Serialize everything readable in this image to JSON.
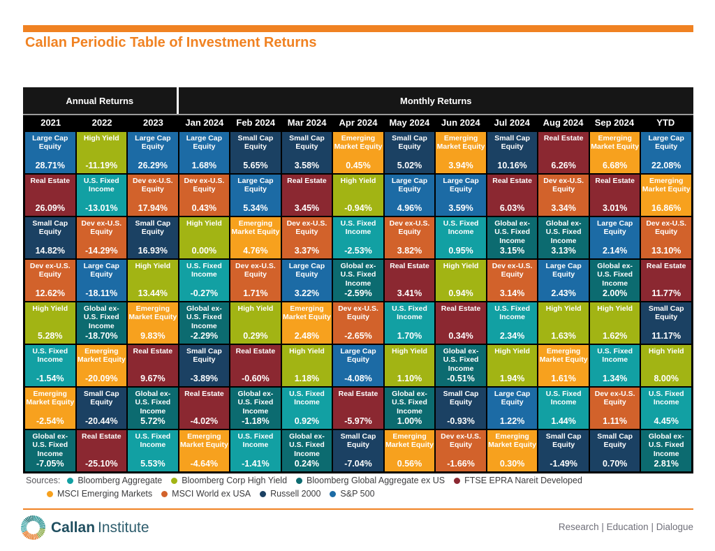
{
  "page": {
    "title": "Callan Periodic Table of Investment Returns",
    "accent_color": "#F08222"
  },
  "table": {
    "annual_header": "Annual Returns",
    "monthly_header": "Monthly Returns"
  },
  "assets": {
    "large_cap": {
      "label": "Large Cap Equity",
      "color": "#1C6BA5",
      "source": "S&P 500"
    },
    "small_cap": {
      "label": "Small Cap Equity",
      "color": "#1B4163",
      "source": "Russell 2000"
    },
    "dev_ex_us": {
      "label": "Dev ex-U.S. Equity",
      "color": "#D2622B",
      "source": "MSCI World ex USA"
    },
    "em_equity": {
      "label": "Emerging Market Equity",
      "color": "#F7A11E",
      "source": "MSCI Emerging Markets"
    },
    "high_yield": {
      "label": "High Yield",
      "color": "#A2B414",
      "source": "Bloomberg Corp High Yield"
    },
    "us_fixed": {
      "label": "U.S. Fixed Income",
      "color": "#12A0A3",
      "source": "Bloomberg Aggregate"
    },
    "global_fixed": {
      "label": "Global ex-U.S. Fixed Income",
      "color": "#0C6B70",
      "source": "Bloomberg Global Aggregate ex US"
    },
    "real_estate": {
      "label": "Real Estate",
      "color": "#8B2831",
      "source": "FTSE EPRA Nareit Developed"
    }
  },
  "chart_data": {
    "type": "table",
    "title": "Callan Periodic Table of Investment Returns",
    "value_unit": "percent_return",
    "column_groups": [
      {
        "label": "Annual Returns",
        "columns": 3
      },
      {
        "label": "Monthly Returns",
        "columns": 10
      }
    ],
    "columns": [
      {
        "label": "2021",
        "cells": [
          {
            "asset": "large_cap",
            "value": 28.71
          },
          {
            "asset": "real_estate",
            "value": 26.09
          },
          {
            "asset": "small_cap",
            "value": 14.82
          },
          {
            "asset": "dev_ex_us",
            "value": 12.62
          },
          {
            "asset": "high_yield",
            "value": 5.28
          },
          {
            "asset": "us_fixed",
            "value": -1.54
          },
          {
            "asset": "em_equity",
            "value": -2.54
          },
          {
            "asset": "global_fixed",
            "value": -7.05
          }
        ]
      },
      {
        "label": "2022",
        "cells": [
          {
            "asset": "high_yield",
            "value": -11.19
          },
          {
            "asset": "us_fixed",
            "value": -13.01
          },
          {
            "asset": "dev_ex_us",
            "value": -14.29
          },
          {
            "asset": "large_cap",
            "value": -18.11
          },
          {
            "asset": "global_fixed",
            "value": -18.7
          },
          {
            "asset": "em_equity",
            "value": -20.09
          },
          {
            "asset": "small_cap",
            "value": -20.44
          },
          {
            "asset": "real_estate",
            "value": -25.1
          }
        ]
      },
      {
        "label": "2023",
        "cells": [
          {
            "asset": "large_cap",
            "value": 26.29
          },
          {
            "asset": "dev_ex_us",
            "value": 17.94
          },
          {
            "asset": "small_cap",
            "value": 16.93
          },
          {
            "asset": "high_yield",
            "value": 13.44
          },
          {
            "asset": "em_equity",
            "value": 9.83
          },
          {
            "asset": "real_estate",
            "value": 9.67
          },
          {
            "asset": "global_fixed",
            "value": 5.72
          },
          {
            "asset": "us_fixed",
            "value": 5.53
          }
        ]
      },
      {
        "label": "Jan 2024",
        "cells": [
          {
            "asset": "large_cap",
            "value": 1.68
          },
          {
            "asset": "dev_ex_us",
            "value": 0.43
          },
          {
            "asset": "high_yield",
            "value": 0.0
          },
          {
            "asset": "us_fixed",
            "value": -0.27
          },
          {
            "asset": "global_fixed",
            "value": -2.29
          },
          {
            "asset": "small_cap",
            "value": -3.89
          },
          {
            "asset": "real_estate",
            "value": -4.02
          },
          {
            "asset": "em_equity",
            "value": -4.64
          }
        ]
      },
      {
        "label": "Feb 2024",
        "cells": [
          {
            "asset": "small_cap",
            "value": 5.65
          },
          {
            "asset": "large_cap",
            "value": 5.34
          },
          {
            "asset": "em_equity",
            "value": 4.76
          },
          {
            "asset": "dev_ex_us",
            "value": 1.71
          },
          {
            "asset": "high_yield",
            "value": 0.29
          },
          {
            "asset": "real_estate",
            "value": -0.6
          },
          {
            "asset": "global_fixed",
            "value": -1.18
          },
          {
            "asset": "us_fixed",
            "value": -1.41
          }
        ]
      },
      {
        "label": "Mar 2024",
        "cells": [
          {
            "asset": "small_cap",
            "value": 3.58
          },
          {
            "asset": "real_estate",
            "value": 3.45
          },
          {
            "asset": "dev_ex_us",
            "value": 3.37
          },
          {
            "asset": "large_cap",
            "value": 3.22
          },
          {
            "asset": "em_equity",
            "value": 2.48
          },
          {
            "asset": "high_yield",
            "value": 1.18
          },
          {
            "asset": "us_fixed",
            "value": 0.92
          },
          {
            "asset": "global_fixed",
            "value": 0.24
          }
        ]
      },
      {
        "label": "Apr 2024",
        "cells": [
          {
            "asset": "em_equity",
            "value": 0.45
          },
          {
            "asset": "high_yield",
            "value": -0.94
          },
          {
            "asset": "us_fixed",
            "value": -2.53
          },
          {
            "asset": "global_fixed",
            "value": -2.59
          },
          {
            "asset": "dev_ex_us",
            "value": -2.65
          },
          {
            "asset": "large_cap",
            "value": -4.08
          },
          {
            "asset": "real_estate",
            "value": -5.97
          },
          {
            "asset": "small_cap",
            "value": -7.04
          }
        ]
      },
      {
        "label": "May 2024",
        "cells": [
          {
            "asset": "small_cap",
            "value": 5.02
          },
          {
            "asset": "large_cap",
            "value": 4.96
          },
          {
            "asset": "dev_ex_us",
            "value": 3.82
          },
          {
            "asset": "real_estate",
            "value": 3.41
          },
          {
            "asset": "us_fixed",
            "value": 1.7
          },
          {
            "asset": "high_yield",
            "value": 1.1
          },
          {
            "asset": "global_fixed",
            "value": 1.0
          },
          {
            "asset": "em_equity",
            "value": 0.56
          }
        ]
      },
      {
        "label": "Jun 2024",
        "cells": [
          {
            "asset": "em_equity",
            "value": 3.94
          },
          {
            "asset": "large_cap",
            "value": 3.59
          },
          {
            "asset": "us_fixed",
            "value": 0.95
          },
          {
            "asset": "high_yield",
            "value": 0.94
          },
          {
            "asset": "real_estate",
            "value": 0.34
          },
          {
            "asset": "global_fixed",
            "value": -0.51
          },
          {
            "asset": "small_cap",
            "value": -0.93
          },
          {
            "asset": "dev_ex_us",
            "value": -1.66
          }
        ]
      },
      {
        "label": "Jul 2024",
        "cells": [
          {
            "asset": "small_cap",
            "value": 10.16
          },
          {
            "asset": "real_estate",
            "value": 6.03
          },
          {
            "asset": "global_fixed",
            "value": 3.15
          },
          {
            "asset": "dev_ex_us",
            "value": 3.14
          },
          {
            "asset": "us_fixed",
            "value": 2.34
          },
          {
            "asset": "high_yield",
            "value": 1.94
          },
          {
            "asset": "large_cap",
            "value": 1.22
          },
          {
            "asset": "em_equity",
            "value": 0.3
          }
        ]
      },
      {
        "label": "Aug 2024",
        "cells": [
          {
            "asset": "real_estate",
            "value": 6.26
          },
          {
            "asset": "dev_ex_us",
            "value": 3.34
          },
          {
            "asset": "global_fixed",
            "value": 3.13
          },
          {
            "asset": "large_cap",
            "value": 2.43
          },
          {
            "asset": "high_yield",
            "value": 1.63
          },
          {
            "asset": "em_equity",
            "value": 1.61
          },
          {
            "asset": "us_fixed",
            "value": 1.44
          },
          {
            "asset": "small_cap",
            "value": -1.49
          }
        ]
      },
      {
        "label": "Sep 2024",
        "cells": [
          {
            "asset": "em_equity",
            "value": 6.68
          },
          {
            "asset": "real_estate",
            "value": 3.01
          },
          {
            "asset": "large_cap",
            "value": 2.14
          },
          {
            "asset": "global_fixed",
            "value": 2.0
          },
          {
            "asset": "high_yield",
            "value": 1.62
          },
          {
            "asset": "us_fixed",
            "value": 1.34
          },
          {
            "asset": "dev_ex_us",
            "value": 1.11
          },
          {
            "asset": "small_cap",
            "value": 0.7
          }
        ]
      },
      {
        "label": "YTD",
        "cells": [
          {
            "asset": "large_cap",
            "value": 22.08
          },
          {
            "asset": "em_equity",
            "value": 16.86
          },
          {
            "asset": "dev_ex_us",
            "value": 13.1
          },
          {
            "asset": "real_estate",
            "value": 11.77
          },
          {
            "asset": "small_cap",
            "value": 11.17
          },
          {
            "asset": "high_yield",
            "value": 8.0
          },
          {
            "asset": "us_fixed",
            "value": 4.45
          },
          {
            "asset": "global_fixed",
            "value": 2.81
          }
        ]
      }
    ]
  },
  "legend": {
    "label": "Sources:",
    "rows": [
      [
        {
          "name": "Bloomberg Aggregate",
          "asset": "us_fixed"
        },
        {
          "name": "Bloomberg Corp High Yield",
          "asset": "high_yield"
        },
        {
          "name": "Bloomberg Global Aggregate ex US",
          "asset": "global_fixed"
        },
        {
          "name": "FTSE EPRA Nareit Developed",
          "asset": "real_estate"
        }
      ],
      [
        {
          "name": "MSCI Emerging Markets",
          "asset": "em_equity"
        },
        {
          "name": "MSCI World ex USA",
          "asset": "dev_ex_us"
        },
        {
          "name": "Russell 2000",
          "asset": "small_cap"
        },
        {
          "name": "S&P 500",
          "asset": "large_cap"
        }
      ]
    ]
  },
  "footer": {
    "brand_primary": "Callan",
    "brand_secondary": "Institute",
    "tagline": "Research | Education | Dialogue"
  }
}
